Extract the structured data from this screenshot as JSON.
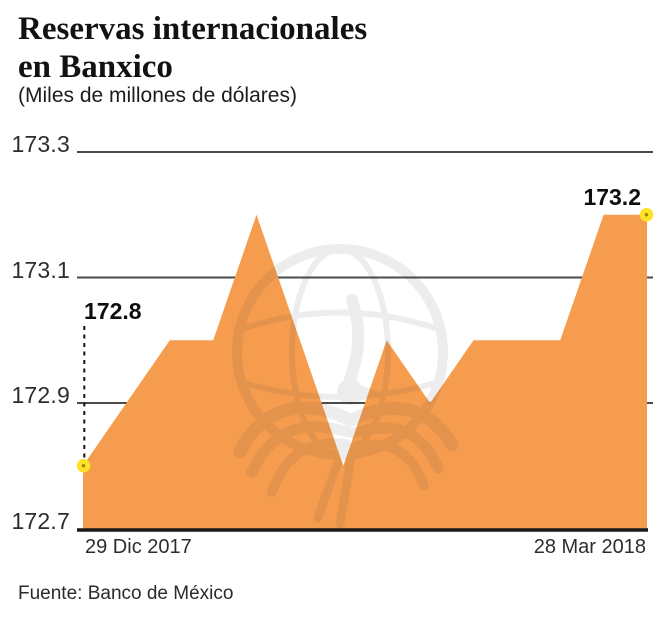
{
  "header": {
    "title_line1": "Reservas internacionales",
    "title_line2": "en Banxico",
    "subtitle": "(Miles de millones de dólares)"
  },
  "chart_data": {
    "type": "area",
    "title": "Reservas internacionales en Banxico",
    "units": "Miles de millones de dólares",
    "x_start_label": "29 Dic 2017",
    "x_end_label": "28 Mar 2018",
    "ylim": [
      172.7,
      173.3
    ],
    "y_ticks": [
      173.3,
      173.1,
      172.9,
      172.7
    ],
    "y_tick_labels": [
      "173.3",
      "173.1",
      "172.9",
      "172.7"
    ],
    "grid": "horizontal-only",
    "legend": "none",
    "values": [
      172.8,
      172.9,
      173.0,
      173.0,
      173.2,
      173.0,
      172.8,
      173.0,
      172.9,
      173.0,
      173.0,
      173.0,
      173.2,
      173.2
    ],
    "start_annotation": {
      "label": "172.8",
      "value": 172.8
    },
    "end_annotation": {
      "label": "173.2",
      "value": 173.2
    },
    "colors": {
      "area": "#F59C4F",
      "marker": "#FFE226",
      "marker_center": "#8A6A10",
      "grid": "#4B4B4B",
      "axis": "#1A1A1A",
      "annotation_line": "#111111"
    }
  },
  "footer": {
    "source": "Fuente: Banco de México"
  }
}
